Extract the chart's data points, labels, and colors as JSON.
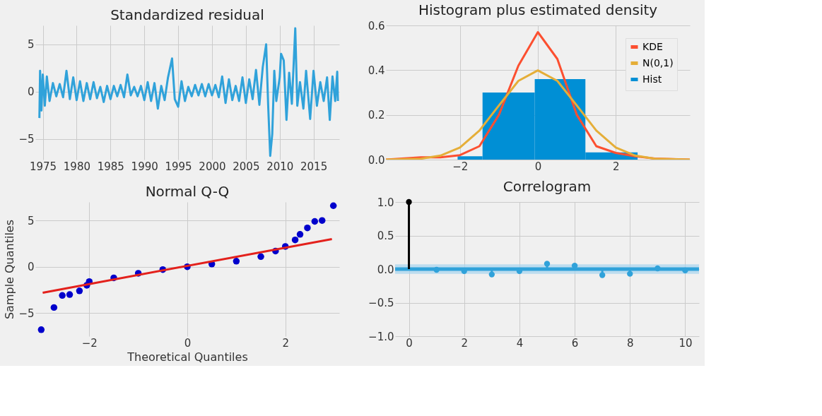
{
  "chart_data": [
    {
      "type": "line",
      "title": "Standardized residual",
      "line_style": "solid",
      "xlim": [
        1973.9,
        2018.8
      ],
      "xticks": [
        1975,
        1980,
        1985,
        1990,
        1995,
        2000,
        2005,
        2010,
        2015
      ],
      "ylim": [
        -7.2,
        7.0
      ],
      "yticks": [
        {
          "value": -5,
          "label": "−5"
        },
        0,
        5
      ],
      "grid": true,
      "series": [
        {
          "color": "#30a2da",
          "x": [
            1974.5,
            1974.6,
            1974.8,
            1975.0,
            1975.3,
            1975.6,
            1976,
            1976.5,
            1977,
            1977.5,
            1978,
            1978.5,
            1979,
            1979.5,
            1980,
            1980.5,
            1981,
            1981.5,
            1982,
            1982.5,
            1983,
            1983.5,
            1984,
            1984.5,
            1985,
            1985.5,
            1986,
            1986.5,
            1987,
            1987.5,
            1988,
            1988.5,
            1989,
            1989.5,
            1990,
            1990.5,
            1991,
            1991.5,
            1992,
            1992.5,
            1993,
            1993.5,
            1994.1,
            1994.5,
            1995,
            1995.5,
            1996,
            1996.5,
            1997,
            1997.5,
            1998,
            1998.5,
            1999,
            1999.5,
            2000,
            2000.5,
            2001,
            2001.5,
            2002,
            2002.5,
            2003,
            2003.5,
            2004,
            2004.5,
            2005,
            2005.5,
            2006,
            2006.5,
            2007,
            2007.5,
            2008.0,
            2008.3,
            2008.6,
            2008.9,
            2009.2,
            2009.5,
            2010.0,
            2010.2,
            2010.6,
            2011.0,
            2011.4,
            2011.8,
            2012.3,
            2012.6,
            2013.0,
            2013.5,
            2013.9,
            2014.5,
            2015.0,
            2015.5,
            2016.0,
            2016.5,
            2017.0,
            2017.4,
            2017.8,
            2018.2,
            2018.5,
            2018.6
          ],
          "values": [
            -2.8,
            2.2,
            -2.0,
            1.8,
            -1.5,
            1.6,
            -1.0,
            0.9,
            -0.5,
            0.8,
            -0.6,
            2.2,
            -0.8,
            1.5,
            -0.9,
            1.1,
            -1.0,
            0.9,
            -0.8,
            1.0,
            -0.7,
            0.5,
            -1.1,
            0.6,
            -0.8,
            0.6,
            -0.5,
            0.7,
            -0.6,
            1.8,
            -0.4,
            0.5,
            -0.5,
            0.6,
            -0.9,
            1.0,
            -1.0,
            0.9,
            -1.8,
            0.6,
            -0.9,
            1.5,
            3.5,
            -0.8,
            -1.6,
            1.1,
            -1.0,
            0.5,
            -0.5,
            0.7,
            -0.4,
            0.8,
            -0.5,
            0.8,
            -0.4,
            0.7,
            -0.6,
            1.6,
            -1.2,
            1.3,
            -0.9,
            0.6,
            -1.0,
            1.5,
            -1.2,
            1.3,
            -0.8,
            2.3,
            -1.4,
            2.6,
            5.0,
            -1.5,
            -6.8,
            -4.5,
            2.2,
            -1.0,
            1.5,
            4.0,
            3.3,
            -3.0,
            2.0,
            -1.3,
            6.7,
            -1.5,
            1.0,
            -1.8,
            2.2,
            -2.9,
            2.2,
            -1.5,
            1.0,
            -1.0,
            1.5,
            -3.0,
            1.6,
            -1.0,
            2.1,
            -1.0
          ]
        }
      ]
    },
    {
      "type": "histogram",
      "title": "Histogram plus estimated density",
      "xlim": [
        -3.9,
        3.9
      ],
      "xticks": [
        {
          "value": -2,
          "label": "−2"
        },
        0,
        2
      ],
      "ylim": [
        0,
        0.6
      ],
      "yticks": [
        {
          "value": 0,
          "label": "0.0"
        },
        0.2,
        0.4,
        0.6
      ],
      "grid": true,
      "legend": "top right",
      "series": [
        {
          "name": "KDE",
          "type": "line",
          "line_style": "solid",
          "color": "#fc4f30",
          "x": [
            -3.9,
            -3.0,
            -2.5,
            -2.0,
            -1.5,
            -1.0,
            -0.5,
            0,
            0.5,
            1.0,
            1.5,
            2.0,
            2.5,
            3.0,
            3.9
          ],
          "values": [
            0.0,
            0.01,
            0.01,
            0.02,
            0.06,
            0.2,
            0.42,
            0.57,
            0.45,
            0.2,
            0.06,
            0.03,
            0.015,
            0.005,
            0.0
          ]
        },
        {
          "name": "N(0,1)",
          "type": "line",
          "line_style": "solid",
          "color": "#e5ae38",
          "x": [
            -3.9,
            -3.0,
            -2.5,
            -2.0,
            -1.5,
            -1.0,
            -0.5,
            0,
            0.5,
            1.0,
            1.5,
            2.0,
            2.5,
            3.0,
            3.9
          ],
          "values": [
            0.0,
            0.004,
            0.018,
            0.054,
            0.13,
            0.242,
            0.352,
            0.399,
            0.352,
            0.242,
            0.13,
            0.054,
            0.018,
            0.004,
            0.0
          ]
        },
        {
          "name": "Hist",
          "type": "histogram",
          "color": "#008fd5",
          "bins": [
            -2.06,
            -1.42,
            -0.08,
            1.22,
            2.56
          ],
          "values": [
            0.015,
            0.3,
            0.36,
            0.032
          ]
        }
      ]
    },
    {
      "type": "scatter",
      "title": "Normal Q-Q",
      "xlabel": "Theoretical Quantiles",
      "ylabel": "Sample Quantiles",
      "xlim": [
        -3.1,
        3.1
      ],
      "xticks": [
        {
          "value": -2,
          "label": "−2"
        },
        0,
        2
      ],
      "ylim": [
        -7.5,
        7.0
      ],
      "yticks": [
        {
          "value": -5,
          "label": "−5"
        },
        0,
        5
      ],
      "grid": true,
      "marker": "circle",
      "series": [
        {
          "color": "#0000cc",
          "x": [
            -2.98,
            -2.72,
            -2.55,
            -2.4,
            -2.2,
            -2.05,
            -2.0,
            -1.5,
            -1.0,
            -0.5,
            0,
            0.5,
            1.0,
            1.5,
            1.8,
            2.0,
            2.2,
            2.3,
            2.45,
            2.6,
            2.75,
            2.98
          ],
          "values": [
            -6.8,
            -4.4,
            -3.1,
            -3.0,
            -2.6,
            -2.0,
            -1.6,
            -1.2,
            -0.7,
            -0.3,
            0,
            0.3,
            0.6,
            1.1,
            1.7,
            2.2,
            2.9,
            3.5,
            4.2,
            4.9,
            5.0,
            6.6
          ]
        },
        {
          "type": "line",
          "marker": "none",
          "line_style": "solid",
          "color": "#e3211c",
          "x": [
            -2.95,
            2.95
          ],
          "values": [
            -2.8,
            3.0
          ]
        }
      ]
    },
    {
      "type": "lollipop",
      "title": "Correlogram",
      "x": [
        0,
        1,
        2,
        3,
        4,
        5,
        6,
        7,
        8,
        9,
        10
      ],
      "values": [
        1.0,
        -0.01,
        -0.03,
        -0.08,
        -0.03,
        0.08,
        0.05,
        -0.09,
        -0.07,
        0.01,
        -0.02
      ],
      "colors": [
        "#000000",
        "#30a2da",
        "#30a2da",
        "#30a2da",
        "#30a2da",
        "#30a2da",
        "#30a2da",
        "#30a2da",
        "#30a2da",
        "#30a2da",
        "#30a2da"
      ],
      "marker": "circle",
      "xlim": [
        -0.5,
        10.5
      ],
      "xticks": [
        0,
        2,
        4,
        6,
        8,
        10
      ],
      "ylim": [
        -1.0,
        1.0
      ],
      "yticks": [
        {
          "value": -1,
          "label": "−1.0"
        },
        {
          "value": -0.5,
          "label": "−0.5"
        },
        {
          "value": 0,
          "label": "0.0"
        },
        0.5,
        {
          "value": 1,
          "label": "1.0"
        }
      ],
      "grid": true,
      "ref_lines": [
        {
          "axis": "y",
          "value": 0,
          "color": "#30a2da"
        }
      ],
      "bands": [
        {
          "axis": "y",
          "from": -0.07,
          "to": 0.07,
          "color": "#a6d3ee"
        }
      ]
    }
  ]
}
